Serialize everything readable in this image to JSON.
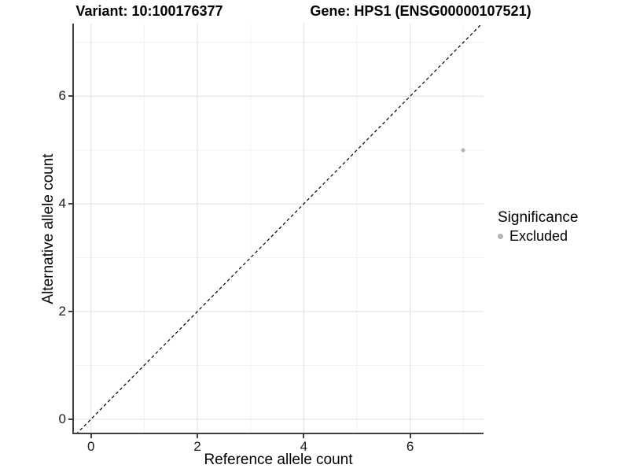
{
  "chart_data": {
    "type": "scatter",
    "titles": {
      "left": "Variant: 10:100176377",
      "right": "Gene: HPS1 (ENSG00000107521)"
    },
    "xlabel": "Reference allele count",
    "ylabel": "Alternative allele count",
    "x_ticks": [
      0,
      2,
      4,
      6
    ],
    "y_ticks": [
      0,
      2,
      4,
      6
    ],
    "x_minor_gridlines": [
      1,
      3,
      5,
      7
    ],
    "y_minor_gridlines": [
      1,
      3,
      5,
      7
    ],
    "xlim": [
      -0.35,
      7.38
    ],
    "ylim": [
      -0.28,
      7.35
    ],
    "grid": true,
    "reference_line": {
      "style": "dashed",
      "slope": 1,
      "intercept": 0
    },
    "points": [
      {
        "x": 7,
        "y": 5,
        "significance": "Excluded"
      }
    ],
    "legend": {
      "title": "Significance",
      "position": "right",
      "items": [
        {
          "label": "Excluded",
          "color": "#b3b3b3"
        }
      ]
    },
    "colors": {
      "background": "#ffffff",
      "point": "#b3b3b3",
      "grid_major": "#e4e4e4",
      "grid_minor": "#f1f1f1",
      "axis_line": "#404040",
      "dashed_line": "#000000",
      "text": "#000000"
    }
  }
}
